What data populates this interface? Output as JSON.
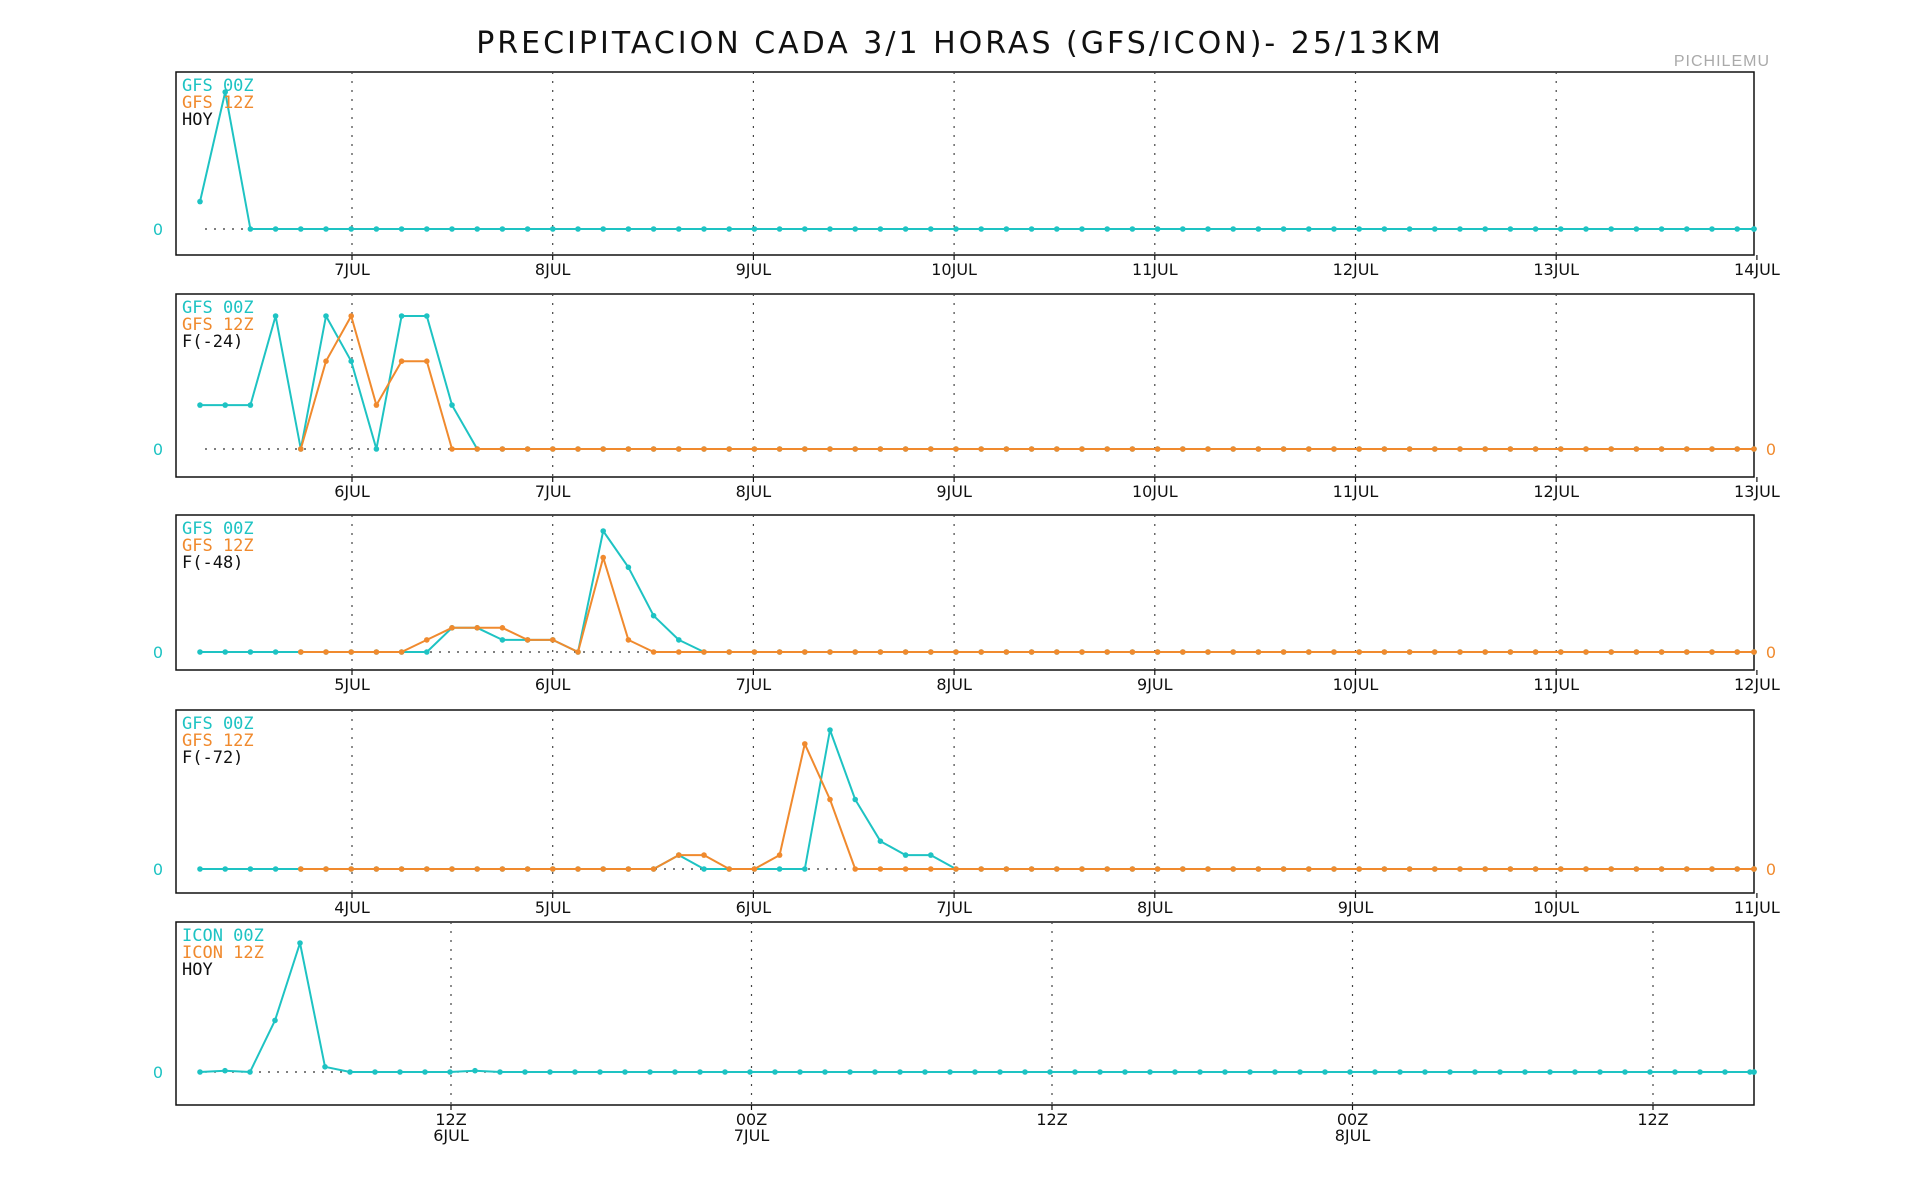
{
  "title": "PRECIPITACION CADA 3/1 HORAS (GFS/ICON)- 25/13KM",
  "station": "PICHILEMU",
  "colors": {
    "series_00z": "#1ec3c3",
    "series_12z": "#f08a2e",
    "text": "#111111"
  },
  "chart_data": [
    {
      "type": "line",
      "legend": [
        "GFS 00Z",
        "GFS 12Z",
        "HOY"
      ],
      "x_ticks": [
        "7JUL",
        "8JUL",
        "9JUL",
        "10JUL",
        "11JUL",
        "12JUL",
        "13JUL",
        "14JUL"
      ],
      "right_zero_label": false,
      "series": [
        {
          "name": "GFS 00Z",
          "start": 0,
          "values": [
            0.2,
            1,
            0,
            0,
            0,
            0,
            0,
            0,
            0,
            0,
            0,
            0,
            0,
            0,
            0,
            0,
            0,
            0,
            0,
            0,
            0,
            0,
            0,
            0,
            0,
            0,
            0,
            0,
            0,
            0,
            0,
            0,
            0,
            0,
            0,
            0,
            0,
            0,
            0,
            0,
            0,
            0,
            0,
            0,
            0,
            0,
            0,
            0,
            0,
            0,
            0,
            0,
            0,
            0,
            0,
            0,
            0,
            0,
            0,
            0,
            0,
            0,
            0,
            0
          ]
        }
      ]
    },
    {
      "type": "line",
      "legend": [
        "GFS 00Z",
        "GFS 12Z",
        "F(-24)"
      ],
      "x_ticks": [
        "6JUL",
        "7JUL",
        "8JUL",
        "9JUL",
        "10JUL",
        "11JUL",
        "12JUL",
        "13JUL"
      ],
      "right_zero_label": true,
      "series": [
        {
          "name": "GFS 00Z",
          "start": 0,
          "values": [
            0.33,
            0.33,
            0.33,
            1,
            0,
            1,
            0.66,
            0,
            1,
            1,
            0.33,
            0,
            0,
            0,
            0,
            0,
            0,
            0,
            0,
            0,
            0,
            0,
            0,
            0,
            0,
            0,
            0,
            0,
            0,
            0,
            0,
            0,
            0,
            0,
            0,
            0,
            0,
            0,
            0,
            0,
            0,
            0,
            0,
            0,
            0,
            0,
            0,
            0,
            0,
            0,
            0,
            0,
            0,
            0,
            0,
            0,
            0,
            0,
            0,
            0,
            0,
            0,
            0
          ]
        },
        {
          "name": "GFS 12Z",
          "start": 4,
          "values": [
            0,
            0.66,
            1,
            0.33,
            0.66,
            0.66,
            0,
            0,
            0,
            0,
            0,
            0,
            0,
            0,
            0,
            0,
            0,
            0,
            0,
            0,
            0,
            0,
            0,
            0,
            0,
            0,
            0,
            0,
            0,
            0,
            0,
            0,
            0,
            0,
            0,
            0,
            0,
            0,
            0,
            0,
            0,
            0,
            0,
            0,
            0,
            0,
            0,
            0,
            0,
            0,
            0,
            0,
            0,
            0,
            0,
            0,
            0,
            0,
            0
          ]
        }
      ]
    },
    {
      "type": "line",
      "legend": [
        "GFS 00Z",
        "GFS 12Z",
        "F(-48)"
      ],
      "x_ticks": [
        "5JUL",
        "6JUL",
        "7JUL",
        "8JUL",
        "9JUL",
        "10JUL",
        "11JUL",
        "12JUL"
      ],
      "right_zero_label": true,
      "series": [
        {
          "name": "GFS 00Z",
          "start": 0,
          "values": [
            0,
            0,
            0,
            0,
            0,
            0,
            0,
            0,
            0,
            0,
            0.2,
            0.2,
            0.1,
            0.1,
            0.1,
            0,
            1,
            0.7,
            0.3,
            0.1,
            0,
            0,
            0,
            0,
            0,
            0,
            0,
            0,
            0,
            0,
            0,
            0,
            0,
            0,
            0,
            0,
            0,
            0,
            0,
            0,
            0,
            0,
            0,
            0,
            0,
            0,
            0,
            0,
            0,
            0,
            0,
            0,
            0,
            0,
            0,
            0,
            0,
            0,
            0,
            0,
            0,
            0,
            0,
            0
          ]
        },
        {
          "name": "GFS 12Z",
          "start": 4,
          "values": [
            0,
            0,
            0,
            0,
            0,
            0.1,
            0.2,
            0.2,
            0.2,
            0.1,
            0.1,
            0,
            0.78,
            0.1,
            0,
            0,
            0,
            0,
            0,
            0,
            0,
            0,
            0,
            0,
            0,
            0,
            0,
            0,
            0,
            0,
            0,
            0,
            0,
            0,
            0,
            0,
            0,
            0,
            0,
            0,
            0,
            0,
            0,
            0,
            0,
            0,
            0,
            0,
            0,
            0,
            0,
            0,
            0,
            0,
            0,
            0,
            0,
            0,
            0,
            0
          ]
        }
      ]
    },
    {
      "type": "line",
      "legend": [
        "GFS 00Z",
        "GFS 12Z",
        "F(-72)"
      ],
      "x_ticks": [
        "4JUL",
        "5JUL",
        "6JUL",
        "7JUL",
        "8JUL",
        "9JUL",
        "10JUL",
        "11JUL"
      ],
      "right_zero_label": true,
      "series": [
        {
          "name": "GFS 00Z",
          "start": 0,
          "values": [
            0,
            0,
            0,
            0,
            0,
            0,
            0,
            0,
            0,
            0,
            0,
            0,
            0,
            0,
            0,
            0,
            0,
            0,
            0,
            0.1,
            0,
            0,
            0,
            0,
            0,
            1,
            0.5,
            0.2,
            0.1,
            0.1,
            0,
            0,
            0,
            0,
            0,
            0,
            0,
            0,
            0,
            0,
            0,
            0,
            0,
            0,
            0,
            0,
            0,
            0,
            0,
            0,
            0,
            0,
            0,
            0,
            0,
            0,
            0,
            0,
            0,
            0,
            0,
            0,
            0,
            0
          ]
        },
        {
          "name": "GFS 12Z",
          "start": 4,
          "values": [
            0,
            0,
            0,
            0,
            0,
            0,
            0,
            0,
            0,
            0,
            0,
            0,
            0,
            0,
            0,
            0.1,
            0.1,
            0,
            0,
            0.1,
            0.9,
            0.5,
            0,
            0,
            0,
            0,
            0,
            0,
            0,
            0,
            0,
            0,
            0,
            0,
            0,
            0,
            0,
            0,
            0,
            0,
            0,
            0,
            0,
            0,
            0,
            0,
            0,
            0,
            0,
            0,
            0,
            0,
            0,
            0,
            0,
            0,
            0,
            0,
            0,
            0
          ]
        }
      ]
    },
    {
      "type": "line",
      "legend": [
        "ICON 00Z",
        "ICON 12Z",
        "HOY"
      ],
      "x_ticks": [
        "12Z\n6JUL",
        "00Z\n7JUL",
        "12Z",
        "00Z\n8JUL",
        "12Z"
      ],
      "right_zero_label": false,
      "series": [
        {
          "name": "ICON 00Z",
          "start": 0,
          "values": [
            0,
            0.01,
            0,
            0.4,
            1,
            0.04,
            0,
            0,
            0,
            0,
            0,
            0.01,
            0,
            0,
            0,
            0,
            0,
            0,
            0,
            0,
            0,
            0,
            0,
            0,
            0,
            0,
            0,
            0,
            0,
            0,
            0,
            0,
            0,
            0,
            0,
            0,
            0,
            0,
            0,
            0,
            0,
            0,
            0,
            0,
            0,
            0,
            0,
            0,
            0,
            0,
            0,
            0,
            0,
            0,
            0,
            0,
            0,
            0,
            0,
            0,
            0,
            0,
            0,
            0,
            0
          ]
        }
      ]
    }
  ]
}
